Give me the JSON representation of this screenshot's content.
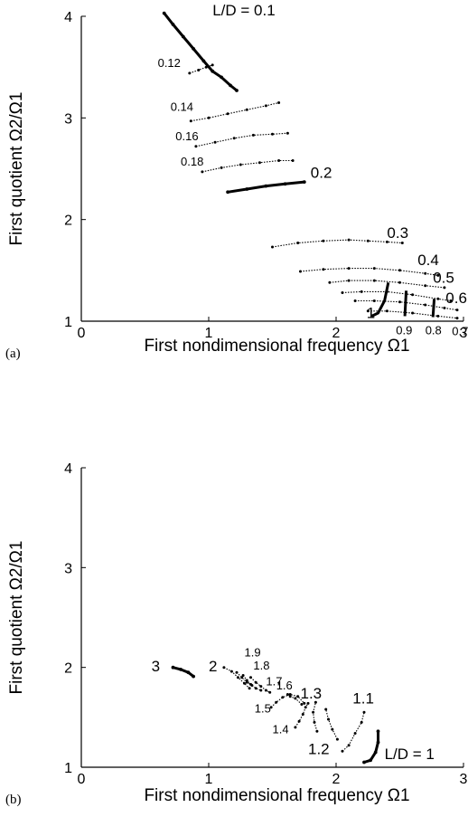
{
  "chart_data": [
    {
      "type": "scatter",
      "panel_label": "(a)",
      "xlabel": "First nondimensional frequency Ω1",
      "ylabel": "First quotient Ω2/Ω1",
      "xlim": [
        0,
        3
      ],
      "ylim": [
        1,
        4
      ],
      "x_ticks": [
        "0",
        "1",
        "2",
        "3"
      ],
      "y_ticks": [
        "1",
        "2",
        "3",
        "4"
      ],
      "grid": false,
      "series": [
        {
          "name": "L/D = 0.1",
          "points": [
            [
              0.65,
              4.03
            ],
            [
              0.72,
              3.92
            ],
            [
              0.8,
              3.8
            ],
            [
              0.88,
              3.68
            ],
            [
              0.96,
              3.56
            ],
            [
              1.03,
              3.46
            ],
            [
              1.1,
              3.4
            ],
            [
              1.17,
              3.32
            ],
            [
              1.22,
              3.27
            ]
          ]
        },
        {
          "name": "0.12",
          "points": [
            [
              0.85,
              3.44
            ],
            [
              0.92,
              3.47
            ],
            [
              0.98,
              3.5
            ],
            [
              1.03,
              3.52
            ]
          ]
        },
        {
          "name": "0.14",
          "points": [
            [
              0.86,
              2.97
            ],
            [
              1.0,
              3.0
            ],
            [
              1.15,
              3.04
            ],
            [
              1.3,
              3.08
            ],
            [
              1.45,
              3.12
            ],
            [
              1.55,
              3.15
            ]
          ]
        },
        {
          "name": "0.16",
          "points": [
            [
              0.9,
              2.72
            ],
            [
              1.05,
              2.76
            ],
            [
              1.2,
              2.8
            ],
            [
              1.35,
              2.83
            ],
            [
              1.5,
              2.84
            ],
            [
              1.62,
              2.85
            ]
          ]
        },
        {
          "name": "0.18",
          "points": [
            [
              0.95,
              2.47
            ],
            [
              1.1,
              2.51
            ],
            [
              1.25,
              2.54
            ],
            [
              1.4,
              2.56
            ],
            [
              1.55,
              2.58
            ],
            [
              1.66,
              2.58
            ]
          ]
        },
        {
          "name": "0.2",
          "points": [
            [
              1.15,
              2.27
            ],
            [
              1.3,
              2.3
            ],
            [
              1.45,
              2.33
            ],
            [
              1.6,
              2.35
            ],
            [
              1.75,
              2.37
            ]
          ]
        },
        {
          "name": "0.3",
          "points": [
            [
              1.5,
              1.73
            ],
            [
              1.7,
              1.77
            ],
            [
              1.9,
              1.79
            ],
            [
              2.1,
              1.8
            ],
            [
              2.25,
              1.79
            ],
            [
              2.4,
              1.78
            ],
            [
              2.52,
              1.77
            ]
          ]
        },
        {
          "name": "0.4",
          "points": [
            [
              1.72,
              1.49
            ],
            [
              1.9,
              1.51
            ],
            [
              2.1,
              1.52
            ],
            [
              2.3,
              1.52
            ],
            [
              2.5,
              1.5
            ],
            [
              2.7,
              1.47
            ],
            [
              2.8,
              1.45
            ]
          ]
        },
        {
          "name": "0.5",
          "points": [
            [
              1.95,
              1.38
            ],
            [
              2.1,
              1.4
            ],
            [
              2.3,
              1.4
            ],
            [
              2.5,
              1.38
            ],
            [
              2.7,
              1.35
            ],
            [
              2.85,
              1.33
            ]
          ]
        },
        {
          "name": "0.6",
          "points": [
            [
              2.05,
              1.28
            ],
            [
              2.2,
              1.29
            ],
            [
              2.4,
              1.29
            ],
            [
              2.6,
              1.26
            ],
            [
              2.8,
              1.22
            ],
            [
              2.9,
              1.2
            ]
          ]
        },
        {
          "name": "0.7",
          "points": [
            [
              2.15,
              1.2
            ],
            [
              2.3,
              1.2
            ],
            [
              2.5,
              1.19
            ],
            [
              2.7,
              1.16
            ],
            [
              2.85,
              1.13
            ],
            [
              2.95,
              1.11
            ]
          ]
        },
        {
          "name": "1",
          "points": [
            [
              2.25,
              1.1
            ],
            [
              2.4,
              1.1
            ],
            [
              2.6,
              1.08
            ],
            [
              2.8,
              1.05
            ],
            [
              2.95,
              1.03
            ]
          ]
        }
      ],
      "bold_segments": [
        {
          "name": "1",
          "points": [
            [
              2.28,
              1.05
            ],
            [
              2.33,
              1.08
            ],
            [
              2.38,
              1.2
            ],
            [
              2.41,
              1.38
            ]
          ]
        },
        {
          "name": "0.9",
          "points": [
            [
              2.54,
              1.05
            ],
            [
              2.55,
              1.3
            ]
          ]
        },
        {
          "name": "0.8",
          "points": [
            [
              2.76,
              1.04
            ],
            [
              2.77,
              1.22
            ]
          ]
        }
      ],
      "annotations": [
        {
          "text": "L/D = 0.1",
          "x": 1.03,
          "y": 4.01,
          "size": 17,
          "italic_prefix": "L/D"
        },
        {
          "text": "0.12",
          "x": 0.6,
          "y": 3.5,
          "size": 13
        },
        {
          "text": "0.14",
          "x": 0.7,
          "y": 3.07,
          "size": 13
        },
        {
          "text": "0.16",
          "x": 0.74,
          "y": 2.78,
          "size": 13
        },
        {
          "text": "0.18",
          "x": 0.78,
          "y": 2.53,
          "size": 13
        },
        {
          "text": "0.2",
          "x": 1.8,
          "y": 2.41,
          "size": 17
        },
        {
          "text": "0.3",
          "x": 2.4,
          "y": 1.82,
          "size": 17
        },
        {
          "text": "0.4",
          "x": 2.64,
          "y": 1.55,
          "size": 17
        },
        {
          "text": "0.5",
          "x": 2.76,
          "y": 1.38,
          "size": 17
        },
        {
          "text": "0.6",
          "x": 2.86,
          "y": 1.18,
          "size": 17
        },
        {
          "text": "1",
          "x": 2.24,
          "y": 1.03,
          "size": 17
        },
        {
          "text": "0.9",
          "x": 2.47,
          "y": 0.87,
          "size": 13
        },
        {
          "text": "0.8",
          "x": 2.7,
          "y": 0.87,
          "size": 13
        },
        {
          "text": "0.7",
          "x": 2.91,
          "y": 0.86,
          "size": 13
        }
      ]
    },
    {
      "type": "scatter",
      "panel_label": "(b)",
      "xlabel": "First nondimensional frequency Ω1",
      "ylabel": "First quotient Ω2/Ω1",
      "xlim": [
        0,
        3
      ],
      "ylim": [
        1,
        4
      ],
      "x_ticks": [
        "0",
        "1",
        "2",
        "3"
      ],
      "y_ticks": [
        "1",
        "2",
        "3",
        "4"
      ],
      "grid": false,
      "series": [
        {
          "name": "L/D = 1",
          "points": [
            [
              2.22,
              1.05
            ],
            [
              2.27,
              1.07
            ],
            [
              2.31,
              1.15
            ],
            [
              2.33,
              1.25
            ],
            [
              2.33,
              1.36
            ]
          ]
        },
        {
          "name": "1.1",
          "points": [
            [
              2.05,
              1.16
            ],
            [
              2.1,
              1.22
            ],
            [
              2.15,
              1.34
            ],
            [
              2.2,
              1.45
            ],
            [
              2.22,
              1.55
            ]
          ]
        },
        {
          "name": "1.2",
          "points": [
            [
              2.01,
              1.28
            ],
            [
              1.97,
              1.38
            ],
            [
              1.94,
              1.48
            ],
            [
              1.92,
              1.58
            ]
          ]
        },
        {
          "name": "1.3",
          "points": [
            [
              1.85,
              1.36
            ],
            [
              1.83,
              1.45
            ],
            [
              1.82,
              1.55
            ],
            [
              1.84,
              1.65
            ]
          ]
        },
        {
          "name": "1.4",
          "points": [
            [
              1.68,
              1.4
            ],
            [
              1.71,
              1.46
            ],
            [
              1.74,
              1.53
            ],
            [
              1.76,
              1.6
            ],
            [
              1.78,
              1.64
            ]
          ]
        },
        {
          "name": "1.5",
          "points": [
            [
              1.49,
              1.6
            ],
            [
              1.53,
              1.65
            ],
            [
              1.58,
              1.7
            ],
            [
              1.64,
              1.73
            ],
            [
              1.7,
              1.71
            ],
            [
              1.75,
              1.64
            ]
          ]
        },
        {
          "name": "1.6",
          "points": [
            [
              1.62,
              1.73
            ],
            [
              1.64,
              1.71
            ],
            [
              1.68,
              1.69
            ],
            [
              1.73,
              1.63
            ]
          ]
        },
        {
          "name": "1.7",
          "points": [
            [
              1.33,
              1.9
            ],
            [
              1.37,
              1.85
            ],
            [
              1.41,
              1.81
            ],
            [
              1.45,
              1.77
            ],
            [
              1.48,
              1.75
            ]
          ]
        },
        {
          "name": "1.8",
          "points": [
            [
              1.27,
              1.92
            ],
            [
              1.3,
              1.87
            ],
            [
              1.33,
              1.83
            ],
            [
              1.37,
              1.79
            ],
            [
              1.41,
              1.77
            ]
          ]
        },
        {
          "name": "1.9",
          "points": [
            [
              1.22,
              1.95
            ],
            [
              1.26,
              1.9
            ],
            [
              1.3,
              1.85
            ],
            [
              1.34,
              1.82
            ]
          ]
        },
        {
          "name": "2",
          "points": [
            [
              1.12,
              2.0
            ],
            [
              1.18,
              1.96
            ],
            [
              1.23,
              1.9
            ],
            [
              1.28,
              1.84
            ],
            [
              1.32,
              1.79
            ]
          ]
        },
        {
          "name": "3",
          "points": [
            [
              0.72,
              2.0
            ],
            [
              0.78,
              1.98
            ],
            [
              0.84,
              1.95
            ],
            [
              0.88,
              1.91
            ]
          ]
        }
      ],
      "bold_segments": [],
      "annotations": [
        {
          "text": "L/D = 1",
          "x": 2.38,
          "y": 1.08,
          "size": 17,
          "italic_prefix": "L/D"
        },
        {
          "text": "1.1",
          "x": 2.13,
          "y": 1.64,
          "size": 17
        },
        {
          "text": "1.2",
          "x": 1.78,
          "y": 1.13,
          "size": 17
        },
        {
          "text": "1.3",
          "x": 1.72,
          "y": 1.69,
          "size": 17
        },
        {
          "text": "1.4",
          "x": 1.5,
          "y": 1.34,
          "size": 13
        },
        {
          "text": "1.5",
          "x": 1.36,
          "y": 1.55,
          "size": 13
        },
        {
          "text": "1.6",
          "x": 1.53,
          "y": 1.78,
          "size": 13
        },
        {
          "text": "1.7",
          "x": 1.45,
          "y": 1.82,
          "size": 13
        },
        {
          "text": "1.8",
          "x": 1.35,
          "y": 1.98,
          "size": 13
        },
        {
          "text": "1.9",
          "x": 1.28,
          "y": 2.11,
          "size": 13
        },
        {
          "text": "2",
          "x": 1.0,
          "y": 1.96,
          "size": 17
        },
        {
          "text": "3",
          "x": 0.55,
          "y": 1.96,
          "size": 17
        }
      ]
    }
  ]
}
